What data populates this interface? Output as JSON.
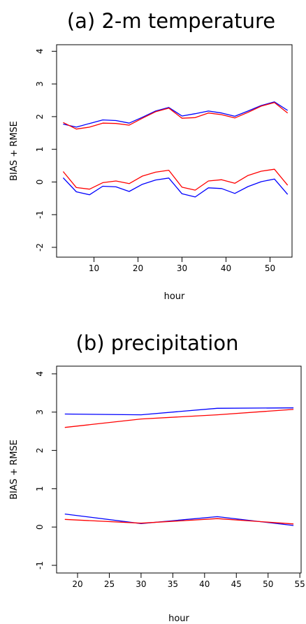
{
  "chart_data": [
    {
      "type": "line",
      "title": "(a) 2-m temperature",
      "xlabel": "hour",
      "ylabel": "BIAS + RMSE",
      "xlim": [
        1.5,
        55
      ],
      "ylim": [
        -2.3,
        4.2
      ],
      "xticks": [
        "10",
        "20",
        "30",
        "40",
        "50"
      ],
      "yticks": [
        "-2",
        "-1",
        "0",
        "1",
        "2",
        "3",
        "4"
      ],
      "grid": false,
      "legend": "none",
      "x": [
        3,
        6,
        9,
        12,
        15,
        18,
        21,
        24,
        27,
        30,
        33,
        36,
        39,
        42,
        45,
        48,
        51,
        54
      ],
      "series": [
        {
          "color": "#0000ff",
          "values": [
            1.77,
            1.68,
            1.79,
            1.9,
            1.88,
            1.8,
            1.98,
            2.17,
            2.28,
            2.02,
            2.09,
            2.17,
            2.11,
            2.01,
            2.17,
            2.34,
            2.45,
            2.19
          ]
        },
        {
          "color": "#ff0000",
          "values": [
            1.82,
            1.62,
            1.68,
            1.8,
            1.79,
            1.74,
            1.95,
            2.15,
            2.26,
            1.95,
            1.97,
            2.11,
            2.06,
            1.96,
            2.13,
            2.32,
            2.43,
            2.11
          ]
        },
        {
          "color": "#ff0000",
          "values": [
            0.32,
            -0.17,
            -0.22,
            -0.02,
            0.03,
            -0.05,
            0.18,
            0.3,
            0.36,
            -0.16,
            -0.25,
            0.03,
            0.07,
            -0.04,
            0.2,
            0.33,
            0.39,
            -0.1
          ]
        },
        {
          "color": "#0000ff",
          "values": [
            0.13,
            -0.3,
            -0.39,
            -0.13,
            -0.15,
            -0.29,
            -0.07,
            0.06,
            0.12,
            -0.36,
            -0.46,
            -0.18,
            -0.2,
            -0.35,
            -0.14,
            0.01,
            0.09,
            -0.38
          ]
        }
      ]
    },
    {
      "type": "line",
      "title": "(b) precipitation",
      "xlabel": "hour",
      "ylabel": "BIAS + RMSE",
      "xlim": [
        16.7,
        55.2
      ],
      "ylim": [
        -1.2,
        4.2
      ],
      "xticks": [
        "20",
        "25",
        "30",
        "35",
        "40",
        "45",
        "50",
        "55"
      ],
      "yticks": [
        "-1",
        "0",
        "1",
        "2",
        "3",
        "4"
      ],
      "grid": false,
      "legend": "none",
      "x": [
        18,
        30,
        42,
        54
      ],
      "series": [
        {
          "color": "#0000ff",
          "values": [
            2.95,
            2.93,
            3.1,
            3.11
          ]
        },
        {
          "color": "#ff0000",
          "values": [
            2.6,
            2.82,
            2.93,
            3.07
          ]
        },
        {
          "color": "#0000ff",
          "values": [
            0.34,
            0.09,
            0.27,
            0.04
          ]
        },
        {
          "color": "#ff0000",
          "values": [
            0.2,
            0.1,
            0.22,
            0.08
          ]
        }
      ]
    }
  ]
}
